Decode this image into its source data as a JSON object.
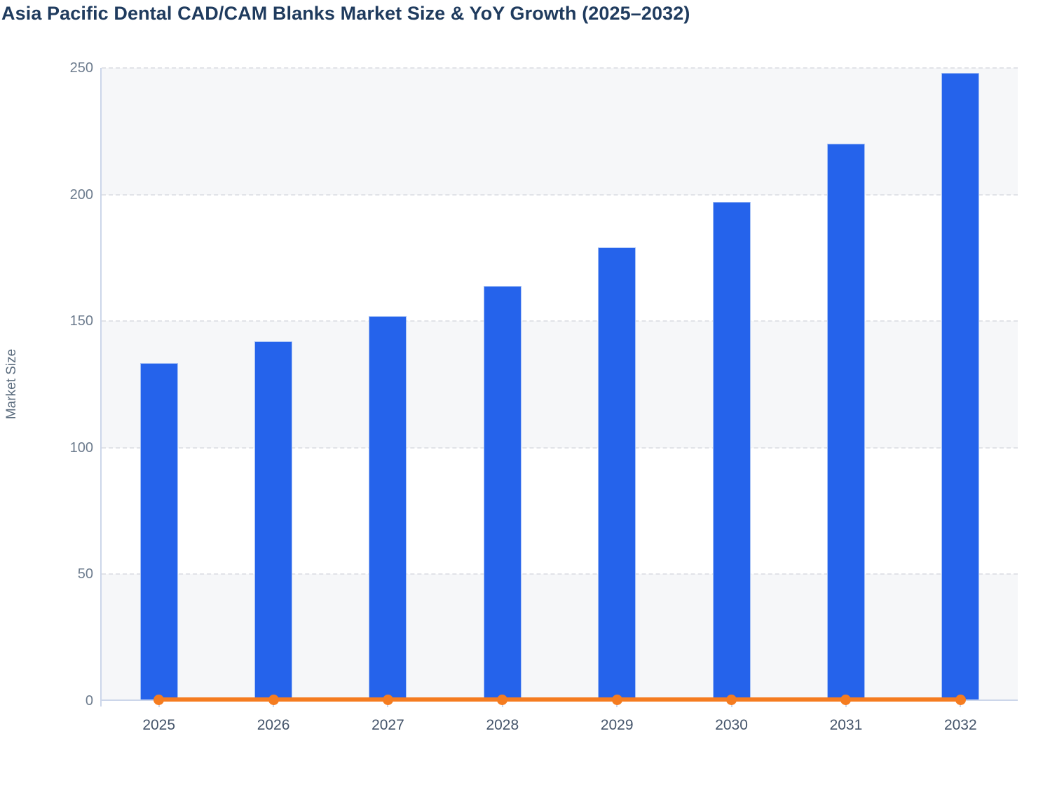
{
  "chart_data": {
    "type": "bar",
    "title": "Asia Pacific Dental CAD/CAM Blanks Market Size & YoY Growth (2025–2032)",
    "ylabel": "Market Size",
    "xlabel": "",
    "categories": [
      "2025",
      "2026",
      "2027",
      "2028",
      "2029",
      "2030",
      "2031",
      "2032"
    ],
    "series": [
      {
        "name": "Market Size",
        "type": "bar",
        "color": "#2563eb",
        "values": [
          133.5,
          142,
          152,
          164,
          179,
          197,
          220,
          248
        ]
      },
      {
        "name": "YoY Growth",
        "type": "line",
        "color": "#f57c20",
        "values": [
          0,
          0,
          0,
          0,
          0,
          0,
          0,
          0
        ]
      }
    ],
    "ylim": [
      0,
      250
    ],
    "yticks": [
      0,
      50,
      100,
      150,
      200,
      250
    ],
    "grid": "horizontal-dashed",
    "split_bands": "alternating from bottom: shaded, white, shaded, white, shaded",
    "legend": "none",
    "style": {
      "bar_color": "#2563eb",
      "bar_border_color": "#a8c2f5",
      "line_color": "#f57c20",
      "band_color": "#f6f7f9",
      "grid_color": "#e1e3e8",
      "axis_color": "#ccd6ea",
      "title_color": "#1f3b5e",
      "x_tick_label_color": "#44546a",
      "y_tick_label_color": "#6d7c8e",
      "axis_title_color": "#5a6b7d"
    }
  }
}
